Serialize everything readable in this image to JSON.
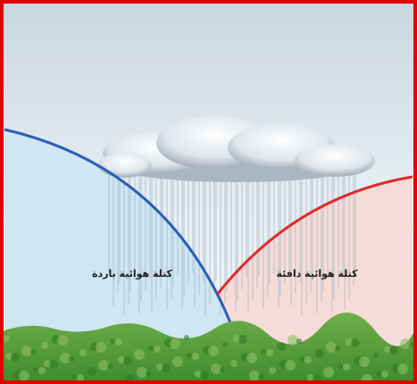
{
  "labels": {
    "cold_air_mass": "كتلة هوائية باردة",
    "warm_air_mass": "كتلة هوائية دافئة"
  }
}
